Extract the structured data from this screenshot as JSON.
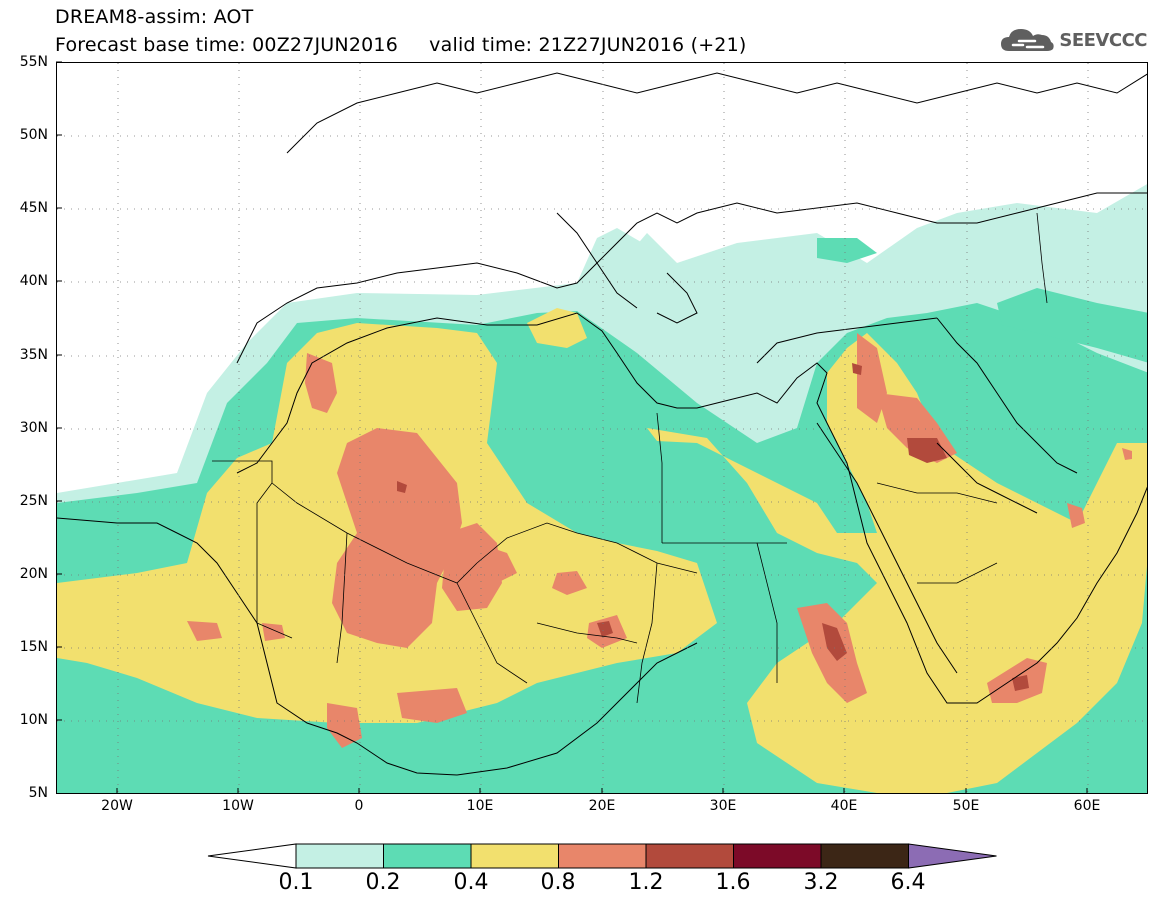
{
  "header": {
    "title_line1": "DREAM8-assim: AOT",
    "title_line2": "Forecast base time: 00Z27JUN2016     valid time: 21Z27JUN2016 (+21)"
  },
  "logo": {
    "text": "SEEVCCC",
    "icon": "cloud-icon",
    "color": "#5f5f5f"
  },
  "map": {
    "lat_labels": [
      "55N",
      "50N",
      "45N",
      "40N",
      "35N",
      "30N",
      "25N",
      "20N",
      "15N",
      "10N",
      "5N"
    ],
    "lon_labels": [
      "20W",
      "10W",
      "0",
      "10E",
      "20E",
      "30E",
      "40E",
      "50E",
      "60E"
    ],
    "lon_range": [
      -25,
      65
    ],
    "lat_range": [
      5,
      55
    ]
  },
  "colorbar": {
    "labels": [
      "0.1",
      "0.2",
      "0.4",
      "0.8",
      "1.2",
      "1.6",
      "3.2",
      "6.4"
    ],
    "colors": [
      "#c4f0e4",
      "#5ddcb4",
      "#f2e06e",
      "#e8866a",
      "#b24a3c",
      "#7c0a28",
      "#3c2616"
    ],
    "under_color": "#ffffff",
    "over_color": "#8c6cb4"
  }
}
